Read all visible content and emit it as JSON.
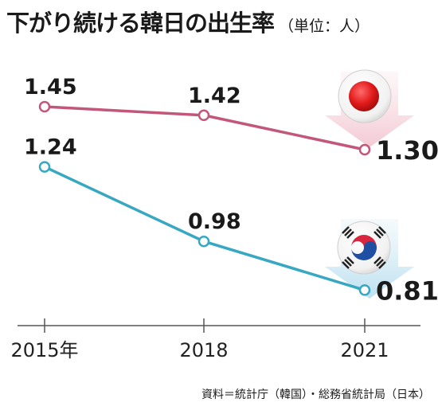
{
  "title": "下がり続ける韓日の出生率",
  "unit": "（単位：人）",
  "source": "資料＝統計庁（韓国）・総務省統計局（日本）",
  "chart_data": {
    "type": "line",
    "title": "下がり続ける韓日の出生率",
    "ylabel": "（単位：人）",
    "categories": [
      "2015年",
      "2018",
      "2021"
    ],
    "x": [
      2015,
      2018,
      2021
    ],
    "ylim": [
      0.6,
      1.6
    ],
    "grid": false,
    "legend": "none",
    "series": [
      {
        "key": "japan",
        "values": [
          1.45,
          1.42,
          1.3
        ],
        "labels": [
          "1.45",
          "1.42",
          "1.30"
        ],
        "color": "#c2577a",
        "flag": "japan-flag-icon"
      },
      {
        "key": "korea",
        "values": [
          1.24,
          0.98,
          0.81
        ],
        "labels": [
          "1.24",
          "0.98",
          "0.81"
        ],
        "color": "#38a8c2",
        "flag": "korea-flag-icon"
      }
    ]
  }
}
